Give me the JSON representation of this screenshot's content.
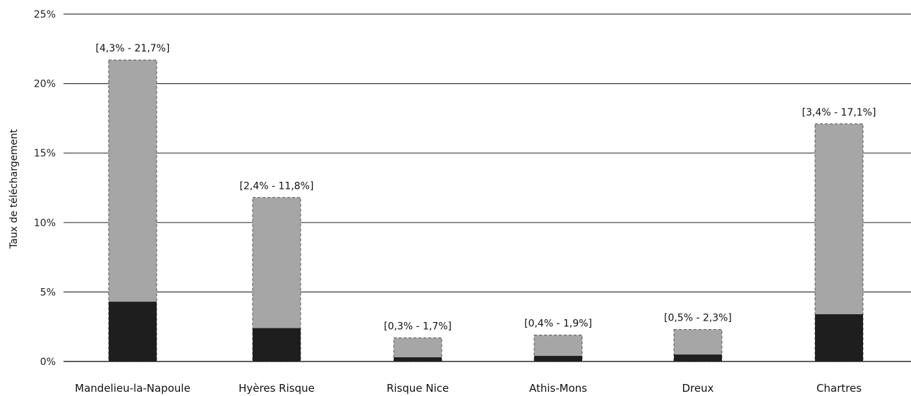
{
  "chart_data": {
    "type": "bar",
    "stacked": true,
    "ylabel": "Taux de téléchargement",
    "xlabel": "",
    "ylim": [
      0,
      25
    ],
    "y_ticks": [
      "0%",
      "5%",
      "10%",
      "15%",
      "20%",
      "25%"
    ],
    "y_tick_values": [
      0,
      5,
      10,
      15,
      20,
      25
    ],
    "grid": true,
    "categories": [
      "Mandelieu-la-Napoule",
      "Hyères Risque",
      "Risque Nice",
      "Athis-Mons",
      "Dreux",
      "Chartres"
    ],
    "range_labels": [
      "[4,3% - 21,7%]",
      "[2,4% - 11,8%]",
      "[0,3% - 1,7%]",
      "[0,4% - 1,9%]",
      "[0,5% - 2,3%]",
      "[3,4% - 17,1%]"
    ],
    "series": [
      {
        "values": [
          4.3,
          2.4,
          0.3,
          0.4,
          0.5,
          3.4
        ],
        "color": "#1e1e1e"
      },
      {
        "values": [
          21.7,
          11.8,
          1.7,
          1.9,
          2.3,
          17.1
        ],
        "color": "#a6a6a6"
      }
    ]
  }
}
